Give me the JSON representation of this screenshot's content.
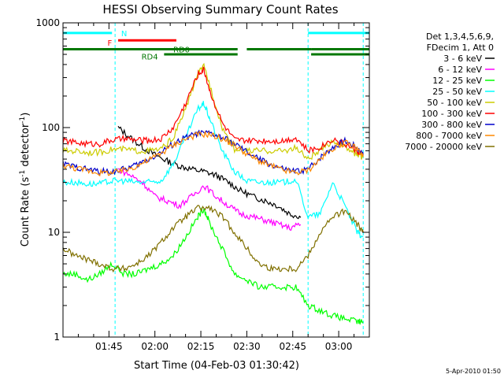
{
  "chart_data": {
    "type": "line",
    "title": "HESSI Observing Summary Count Rates",
    "xlabel": "Start Time (04-Feb-03 01:30:42)",
    "ylabel_prefix": "Count Rate (s",
    "ylabel_sup1": "-1",
    "ylabel_mid": " detector",
    "ylabel_sup2": "-1",
    "ylabel_suffix": ")",
    "ylog": true,
    "ylim": [
      1,
      1000
    ],
    "xlim_minutes": [
      0,
      100
    ],
    "x_ticks": [
      {
        "minute": 15,
        "label": "01:45"
      },
      {
        "minute": 30,
        "label": "02:00"
      },
      {
        "minute": 45,
        "label": "02:15"
      },
      {
        "minute": 60,
        "label": "02:30"
      },
      {
        "minute": 75,
        "label": "02:45"
      },
      {
        "minute": 90,
        "label": "03:00"
      }
    ],
    "y_ticks": [
      {
        "value": 1,
        "label": "1"
      },
      {
        "value": 10,
        "label": "10"
      },
      {
        "value": 100,
        "label": "100"
      },
      {
        "value": 1000,
        "label": "1000"
      }
    ],
    "legend_header": [
      "Det 1,3,4,5,6,9,",
      "FDecim 1, Att 0"
    ],
    "series": [
      {
        "name": "3 - 6 keV",
        "color": "#000000",
        "x": [
          0,
          14,
          18,
          22,
          26,
          30,
          34,
          38,
          42,
          46,
          50,
          54,
          58,
          62,
          66,
          70,
          74,
          78,
          82,
          86,
          90,
          94,
          98
        ],
        "values": [
          null,
          null,
          100,
          80,
          65,
          55,
          48,
          43,
          40,
          38,
          35,
          30,
          25,
          22,
          20,
          18,
          15,
          14,
          null,
          null,
          null,
          null,
          null
        ]
      },
      {
        "name": "6 - 12 keV",
        "color": "#ff00ff",
        "x": [
          18,
          22,
          26,
          30,
          34,
          38,
          42,
          46,
          50,
          54,
          58,
          62,
          66,
          70,
          74,
          78,
          82,
          86,
          90,
          94,
          98
        ],
        "values": [
          40,
          35,
          30,
          22,
          20,
          18,
          22,
          28,
          22,
          18,
          15,
          14,
          13,
          12,
          11,
          12,
          null,
          null,
          null,
          null,
          null
        ]
      },
      {
        "name": "12 - 25 keV",
        "color": "#00ff00",
        "x": [
          0,
          4,
          8,
          12,
          16,
          20,
          24,
          28,
          32,
          36,
          40,
          44,
          46,
          48,
          52,
          56,
          60,
          64,
          68,
          72,
          76,
          80,
          84,
          88,
          92,
          96,
          98
        ],
        "values": [
          4,
          4,
          3.5,
          4,
          5,
          4,
          4,
          4.5,
          5,
          6,
          9,
          14,
          17,
          12,
          7,
          4,
          3.5,
          3,
          3,
          3,
          3,
          2,
          1.8,
          1.6,
          1.5,
          1.4,
          1.4
        ]
      },
      {
        "name": "25 - 50 keV",
        "color": "#00ffff",
        "x": [
          0,
          4,
          8,
          12,
          16,
          20,
          24,
          28,
          32,
          36,
          40,
          44,
          46,
          48,
          52,
          56,
          60,
          64,
          68,
          72,
          76,
          80,
          84,
          88,
          92,
          96,
          98
        ],
        "values": [
          30,
          30,
          29,
          29,
          31,
          31,
          30,
          30,
          31,
          45,
          80,
          150,
          170,
          120,
          60,
          38,
          31,
          30,
          30,
          30,
          32,
          14,
          15,
          30,
          18,
          10,
          9
        ]
      },
      {
        "name": "50 - 100 keV",
        "color": "#cccc00",
        "x": [
          0,
          4,
          8,
          12,
          16,
          20,
          24,
          28,
          32,
          36,
          40,
          44,
          46,
          48,
          52,
          56,
          60,
          64,
          68,
          72,
          76,
          80,
          84,
          88,
          92,
          96,
          98
        ],
        "values": [
          60,
          60,
          58,
          58,
          62,
          62,
          60,
          60,
          62,
          80,
          150,
          330,
          380,
          250,
          100,
          62,
          60,
          60,
          60,
          60,
          64,
          50,
          60,
          75,
          65,
          55,
          52
        ]
      },
      {
        "name": "100 - 300 keV",
        "color": "#ff0000",
        "x": [
          0,
          4,
          8,
          12,
          16,
          20,
          24,
          28,
          32,
          36,
          40,
          44,
          46,
          48,
          52,
          56,
          60,
          64,
          68,
          72,
          76,
          80,
          84,
          88,
          92,
          96,
          98
        ],
        "values": [
          75,
          72,
          70,
          70,
          76,
          78,
          76,
          75,
          78,
          100,
          170,
          320,
          360,
          220,
          110,
          76,
          75,
          75,
          75,
          75,
          80,
          60,
          65,
          78,
          70,
          60,
          55
        ]
      },
      {
        "name": "300 - 800 keV",
        "color": "#0000cc",
        "x": [
          0,
          4,
          8,
          12,
          16,
          20,
          24,
          28,
          32,
          36,
          40,
          44,
          48,
          52,
          56,
          60,
          64,
          68,
          72,
          76,
          80,
          84,
          88,
          92,
          96,
          98
        ],
        "values": [
          45,
          42,
          40,
          38,
          38,
          40,
          44,
          50,
          58,
          70,
          80,
          88,
          88,
          80,
          70,
          58,
          50,
          44,
          40,
          38,
          40,
          52,
          65,
          75,
          65,
          55
        ]
      },
      {
        "name": "800 - 7000 keV",
        "color": "#ff8800",
        "x": [
          0,
          4,
          8,
          12,
          16,
          20,
          24,
          28,
          32,
          36,
          40,
          44,
          48,
          52,
          56,
          60,
          64,
          68,
          72,
          76,
          80,
          84,
          88,
          92,
          96,
          98
        ],
        "values": [
          44,
          41,
          39,
          37,
          37,
          39,
          43,
          49,
          57,
          68,
          78,
          86,
          86,
          78,
          68,
          56,
          48,
          43,
          39,
          37,
          39,
          50,
          63,
          72,
          63,
          53
        ]
      },
      {
        "name": "7000 - 20000 keV",
        "color": "#807000",
        "x": [
          0,
          4,
          8,
          12,
          16,
          20,
          24,
          28,
          32,
          36,
          40,
          44,
          48,
          52,
          56,
          60,
          64,
          68,
          72,
          76,
          80,
          84,
          88,
          92,
          96,
          98
        ],
        "values": [
          7,
          6,
          5.5,
          5,
          4.5,
          4.5,
          5,
          6,
          8,
          11,
          14,
          17,
          17,
          14,
          10,
          7,
          5,
          4.5,
          4.5,
          4.5,
          6,
          10,
          14,
          16,
          12,
          10
        ]
      }
    ],
    "annotations": [
      {
        "text": "N",
        "color": "#00ffff"
      },
      {
        "text": "F",
        "color": "#ff0000"
      },
      {
        "text": "RD0",
        "color": "#007700"
      },
      {
        "text": "RD4",
        "color": "#007700"
      }
    ],
    "flag_bars": [
      {
        "label": "N",
        "color": "#00ffff",
        "segments": [
          [
            0,
            16
          ],
          [
            80,
            100
          ]
        ],
        "value": 800
      },
      {
        "label": "F",
        "color": "#ff0000",
        "segments": [
          [
            18,
            37
          ]
        ],
        "value": 680
      },
      {
        "label": "RD0",
        "color": "#007700",
        "segments": [
          [
            0,
            57
          ],
          [
            60,
            81
          ],
          [
            81,
            100
          ]
        ],
        "value": 560
      },
      {
        "label": "RD4",
        "color": "#007700",
        "segments": [
          [
            33,
            57
          ],
          [
            81,
            100
          ]
        ],
        "value": 500
      }
    ],
    "night_markers_minutes": [
      0,
      17,
      80,
      98
    ]
  },
  "footer": {
    "timestamp": "5-Apr-2010 01:50"
  }
}
